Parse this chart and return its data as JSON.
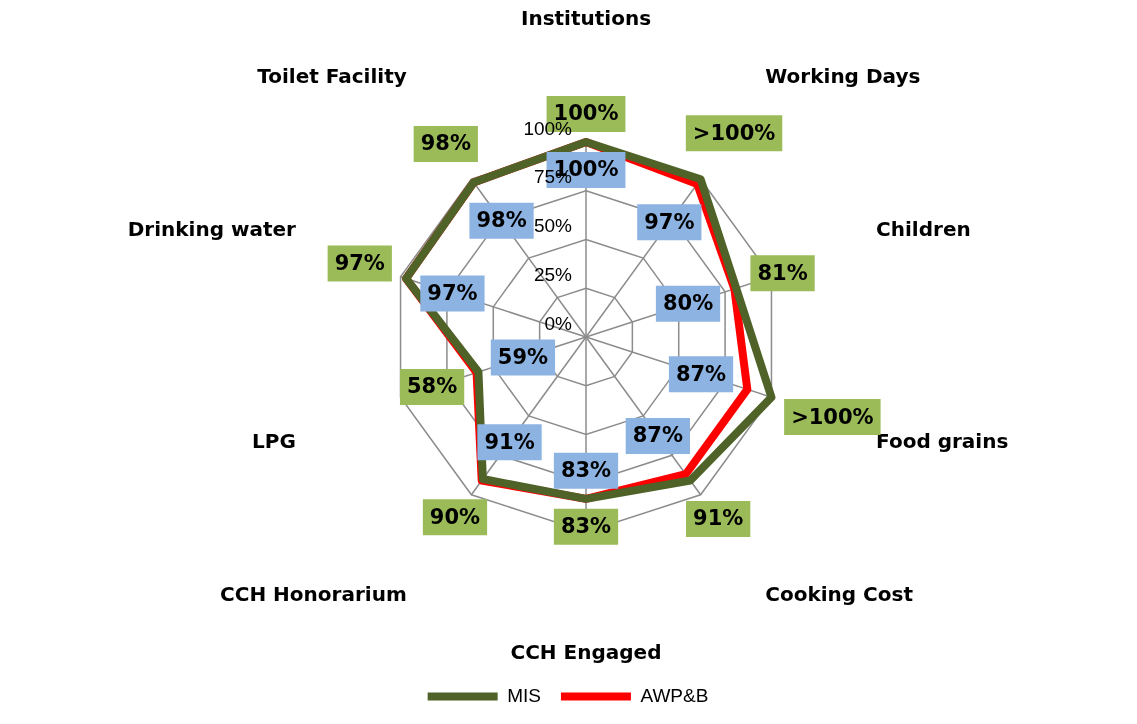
{
  "chart_data": {
    "type": "radar",
    "categories": [
      "Institutions",
      "Working Days",
      "Children",
      "Food grains",
      "Cooking Cost",
      "CCH Engaged",
      "CCH Honorarium",
      "LPG",
      "Drinking water",
      "Toilet Facility"
    ],
    "series": [
      {
        "name": "MIS",
        "color": "#4f6228",
        "values": [
          100,
          100,
          81,
          100,
          91,
          83,
          90,
          58,
          97,
          98
        ],
        "value_labels": [
          "100%",
          ">100%",
          "81%",
          ">100%",
          "91%",
          "83%",
          "90%",
          "58%",
          "97%",
          "98%"
        ]
      },
      {
        "name": "AWP&B",
        "color": "#ff0000",
        "values": [
          100,
          97,
          80,
          87,
          87,
          83,
          91,
          59,
          97,
          98
        ],
        "value_labels": [
          "100%",
          "97%",
          "80%",
          "87%",
          "87%",
          "83%",
          "91%",
          "59%",
          "97%",
          "98%"
        ]
      }
    ],
    "ylim": [
      0,
      100
    ],
    "yticks": [
      {
        "value": 0,
        "label": "0%"
      },
      {
        "value": 25,
        "label": "25%"
      },
      {
        "value": 50,
        "label": "50%"
      },
      {
        "value": 75,
        "label": "75%"
      },
      {
        "value": 100,
        "label": "100%"
      }
    ],
    "grid": true,
    "legend": "bottom",
    "marker": "none",
    "line_style": "solid"
  }
}
